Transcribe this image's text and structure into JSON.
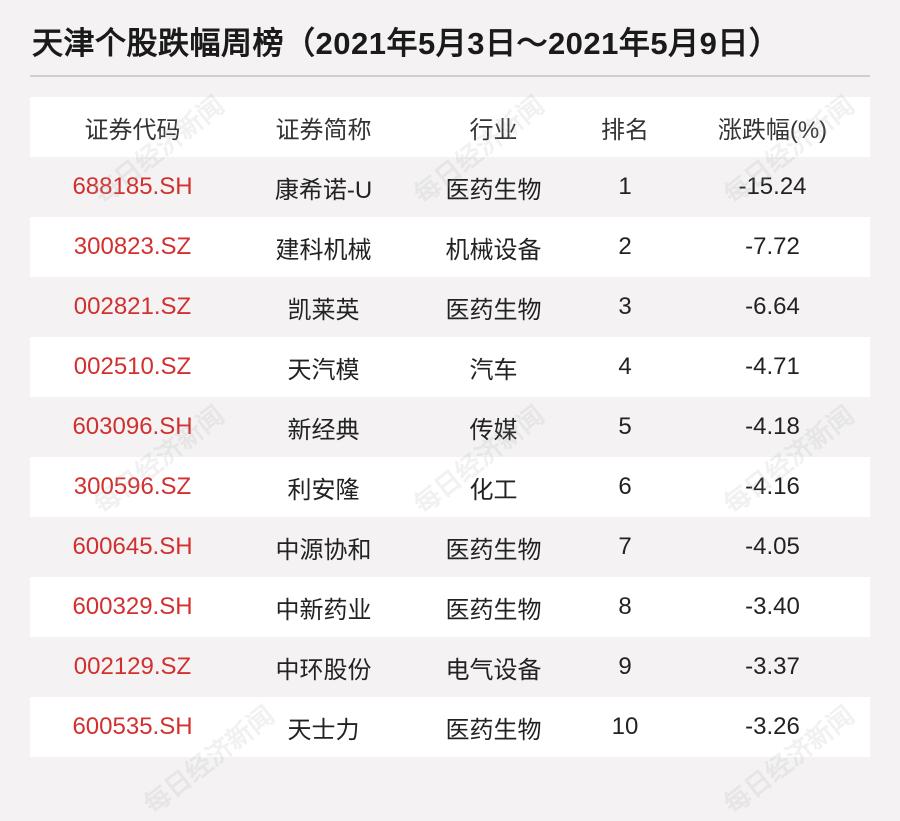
{
  "title": "天津个股跌幅周榜（2021年5月3日～2021年5月9日）",
  "watermark": "每日经济新闻",
  "headers": [
    "证券代码",
    "证券简称",
    "行业",
    "排名",
    "涨跌幅(%)"
  ],
  "rows": [
    {
      "code": "688185.SH",
      "name": "康希诺-U",
      "industry": "医药生物",
      "rank": "1",
      "change": "-15.24"
    },
    {
      "code": "300823.SZ",
      "name": "建科机械",
      "industry": "机械设备",
      "rank": "2",
      "change": "-7.72"
    },
    {
      "code": "002821.SZ",
      "name": "凯莱英",
      "industry": "医药生物",
      "rank": "3",
      "change": "-6.64"
    },
    {
      "code": "002510.SZ",
      "name": "天汽模",
      "industry": "汽车",
      "rank": "4",
      "change": "-4.71"
    },
    {
      "code": "603096.SH",
      "name": "新经典",
      "industry": "传媒",
      "rank": "5",
      "change": "-4.18"
    },
    {
      "code": "300596.SZ",
      "name": "利安隆",
      "industry": "化工",
      "rank": "6",
      "change": "-4.16"
    },
    {
      "code": "600645.SH",
      "name": "中源协和",
      "industry": "医药生物",
      "rank": "7",
      "change": "-4.05"
    },
    {
      "code": "600329.SH",
      "name": "中新药业",
      "industry": "医药生物",
      "rank": "8",
      "change": "-3.40"
    },
    {
      "code": "002129.SZ",
      "name": "中环股份",
      "industry": "电气设备",
      "rank": "9",
      "change": "-3.37"
    },
    {
      "code": "600535.SH",
      "name": "天士力",
      "industry": "医药生物",
      "rank": "10",
      "change": "-3.26"
    }
  ],
  "colors": {
    "code_text": "#d2302f",
    "row_alt": "#f4f2f3",
    "row_white": "#ffffff"
  }
}
